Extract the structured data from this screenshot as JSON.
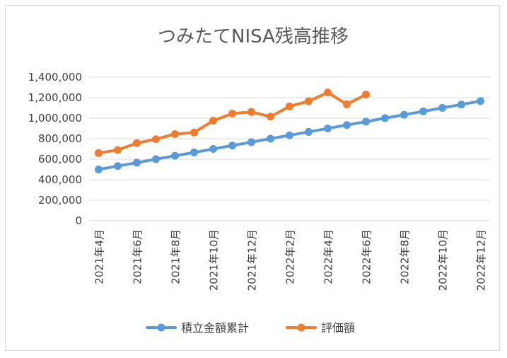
{
  "chart_data": {
    "type": "line",
    "title": "つみたてNISA残高推移",
    "xlabel": "",
    "ylabel": "",
    "ylim": [
      0,
      1400000
    ],
    "yticks": [
      "0",
      "200,000",
      "400,000",
      "600,000",
      "800,000",
      "1,000,000",
      "1,200,000",
      "1,400,000"
    ],
    "ytick_values": [
      0,
      200000,
      400000,
      600000,
      800000,
      1000000,
      1200000,
      1400000
    ],
    "categories": [
      "2021年4月",
      "2021年5月",
      "2021年6月",
      "2021年7月",
      "2021年8月",
      "2021年9月",
      "2021年10月",
      "2021年11月",
      "2021年12月",
      "2022年1月",
      "2022年2月",
      "2022年3月",
      "2022年4月",
      "2022年5月",
      "2022年6月",
      "2022年7月",
      "2022年8月",
      "2022年9月",
      "2022年10月",
      "2022年11月",
      "2022年12月"
    ],
    "xtick_labels": [
      "2021年4月",
      "2021年6月",
      "2021年8月",
      "2021年10月",
      "2021年12月",
      "2022年2月",
      "2022年4月",
      "2022年6月",
      "2022年8月",
      "2022年10月",
      "2022年12月"
    ],
    "series": [
      {
        "name": "積立金額累計",
        "color": "#5b9bd5",
        "values": [
          500000,
          533000,
          566000,
          600000,
          633000,
          666000,
          700000,
          733000,
          766000,
          800000,
          833000,
          866000,
          900000,
          933000,
          966000,
          1000000,
          1033000,
          1066000,
          1100000,
          1133000,
          1166000
        ]
      },
      {
        "name": "評価額",
        "color": "#ed7d31",
        "values": [
          660000,
          690000,
          757000,
          795000,
          845000,
          860000,
          975000,
          1045000,
          1060000,
          1015000,
          1115000,
          1165000,
          1250000,
          1135000,
          1230000,
          null,
          null,
          null,
          null,
          null,
          null
        ]
      }
    ],
    "legend_position": "bottom",
    "grid": true
  }
}
